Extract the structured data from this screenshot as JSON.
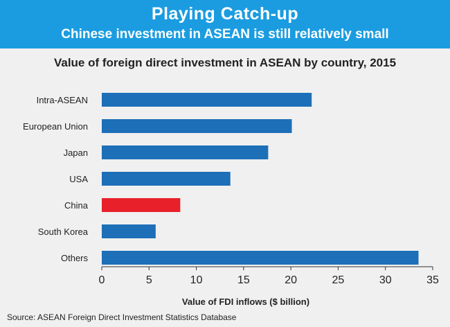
{
  "header": {
    "title": "Playing Catch-up",
    "subtitle": "Chinese investment in ASEAN is still relatively small"
  },
  "colors": {
    "banner": "#1b9ce0",
    "bar": "#1d6fb8",
    "highlight": "#e8202a",
    "background": "#f0f0f0"
  },
  "chart_data": {
    "type": "bar",
    "orientation": "horizontal",
    "title": "Value of foreign direct investment in ASEAN by country, 2015",
    "xlabel": "Value of FDI inflows ($ billion)",
    "ylabel": "",
    "categories": [
      "Intra-ASEAN",
      "European Union",
      "Japan",
      "USA",
      "China",
      "South Korea",
      "Others"
    ],
    "values": [
      22.2,
      20.1,
      17.6,
      13.6,
      8.3,
      5.7,
      33.5
    ],
    "highlight": "China",
    "xlim": [
      0,
      35
    ],
    "xticks": [
      "0",
      "5",
      "10",
      "15",
      "20",
      "25",
      "30",
      "35"
    ],
    "grid": false
  },
  "footer": {
    "source": "Source: ASEAN Foreign Direct Investment Statistics Database"
  }
}
